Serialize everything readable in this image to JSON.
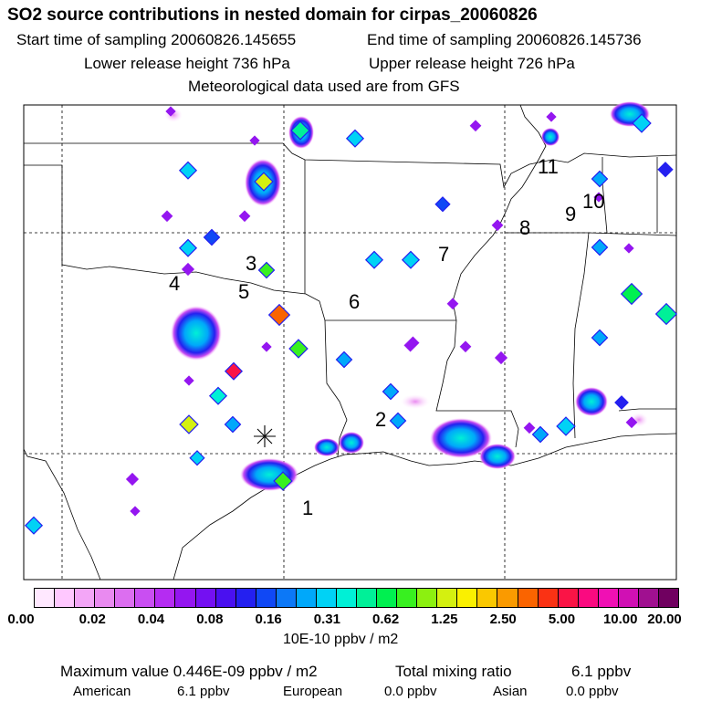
{
  "header": {
    "title": "SO2 source contributions in nested domain for cirpas_20060826",
    "start_label": "Start time of sampling 20060826.145655",
    "end_label": "End time of sampling 20060826.145736",
    "lower_label": "Lower release height  736 hPa",
    "upper_label": "Upper release height  726 hPa",
    "met_label": "Meteorological data used are from GFS"
  },
  "map": {
    "region_labels": [
      "1",
      "2",
      "3",
      "4",
      "5",
      "6",
      "7",
      "8",
      "9",
      "10",
      "11"
    ],
    "release_marker": "asterisk-release-point"
  },
  "colorbar": {
    "colors": [
      "#ffe8ff",
      "#ffc8ff",
      "#f3a6f7",
      "#e98af0",
      "#dc6ef0",
      "#c94ef2",
      "#b52cf2",
      "#9416f0",
      "#7410f2",
      "#4a10f0",
      "#2420f0",
      "#1048f5",
      "#0c78f7",
      "#00a8fa",
      "#00d2f5",
      "#00f0d6",
      "#00f098",
      "#00f050",
      "#38f020",
      "#8cf010",
      "#d4f010",
      "#faf000",
      "#fac800",
      "#fa9a00",
      "#fa6400",
      "#fa3214",
      "#fa1446",
      "#fa0a80",
      "#f010b4",
      "#d010b4",
      "#a01090",
      "#700060"
    ],
    "tick_labels": [
      "0.00",
      "0.02",
      "0.04",
      "0.08",
      "0.16",
      "0.31",
      "0.62",
      "1.25",
      "2.50",
      "5.00",
      "10.00",
      "20.00"
    ],
    "units": "10E-10 ppbv / m2"
  },
  "stats": {
    "max_label": "Maximum value  0.446E-09 ppbv / m2",
    "total_label": "Total mixing ratio",
    "total_value": "6.1 ppbv",
    "american_label": "American",
    "american_value": "6.1 ppbv",
    "european_label": "European",
    "european_value": "0.0 ppbv",
    "asian_label": "Asian",
    "asian_value": "0.0 ppbv"
  }
}
